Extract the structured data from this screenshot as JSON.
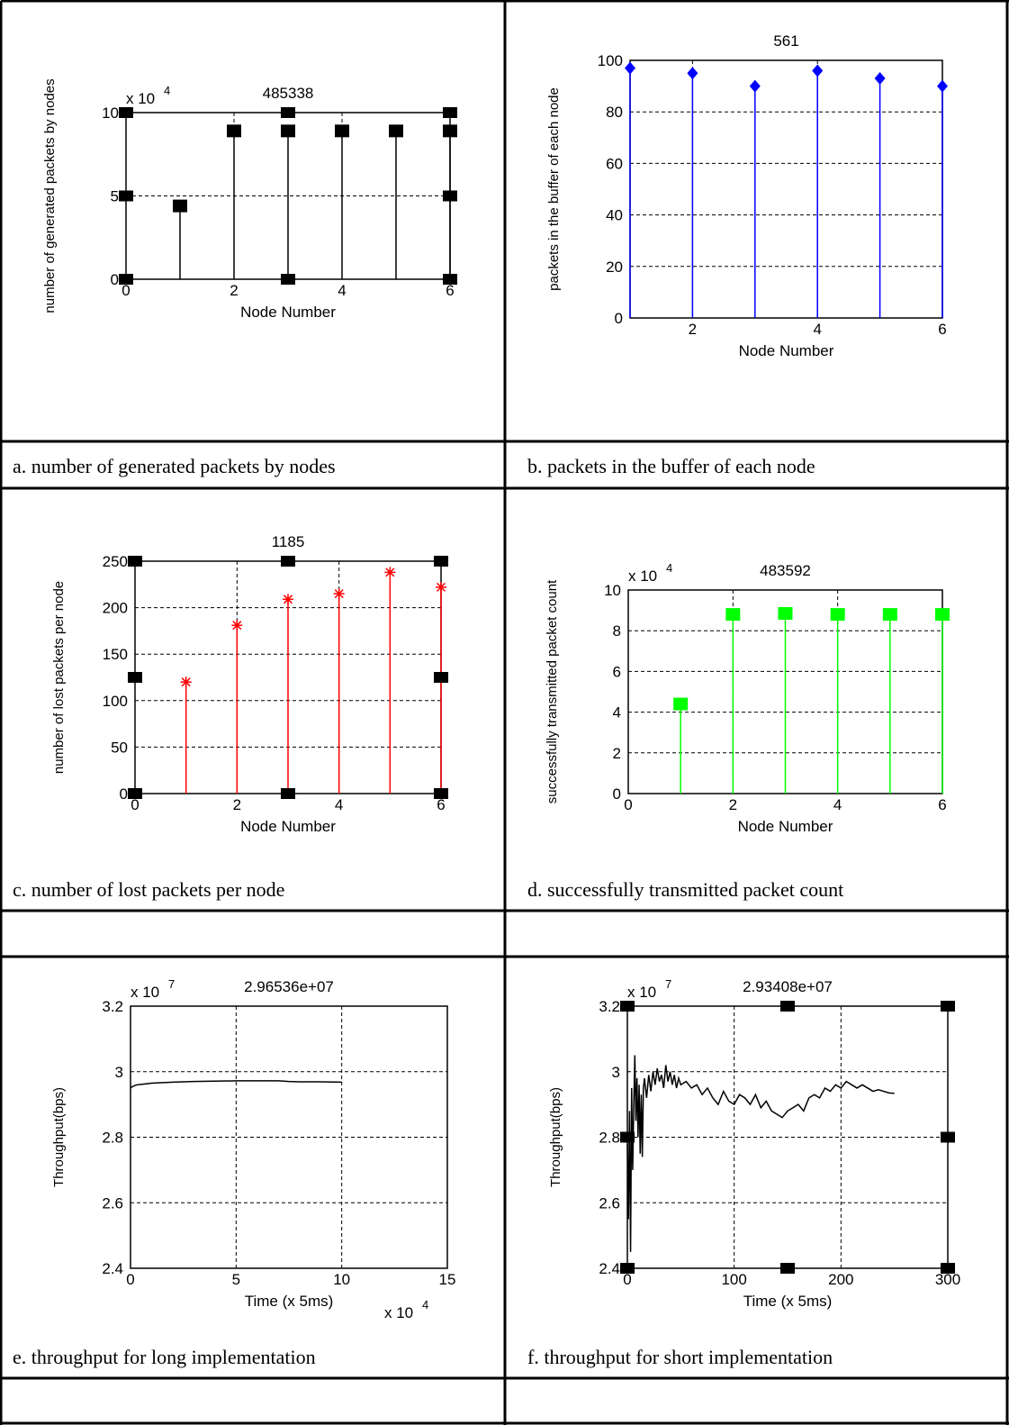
{
  "chart_data": [
    {
      "type": "stem",
      "title": "485338",
      "xlabel": "Node Number",
      "ylabel": "number of generated packets by nodes",
      "y_exponent_label": "x 10",
      "y_exponent": "4",
      "xlim": [
        0,
        6
      ],
      "ylim": [
        0,
        10
      ],
      "xticks": [
        "0",
        "2",
        "4",
        "6"
      ],
      "yticks": [
        "0",
        "5",
        "10"
      ],
      "grid": "dashed",
      "color": "#000000",
      "marker": "square",
      "x": [
        1,
        2,
        3,
        4,
        5,
        6
      ],
      "values": [
        4.4,
        8.9,
        8.9,
        8.9,
        8.9,
        8.9
      ],
      "caption": "a. number of generated packets by nodes"
    },
    {
      "type": "stem",
      "title": "561",
      "xlabel": "Node Number",
      "ylabel": "packets in the buffer of each node",
      "xlim": [
        1,
        6
      ],
      "ylim": [
        0,
        100
      ],
      "xticks": [
        "2",
        "4",
        "6"
      ],
      "yticks": [
        "0",
        "20",
        "40",
        "60",
        "80",
        "100"
      ],
      "grid": "dashed",
      "color": "#0000ff",
      "marker": "diamond",
      "x": [
        1,
        2,
        3,
        4,
        5,
        6
      ],
      "values": [
        97,
        95,
        90,
        96,
        93,
        90
      ],
      "caption": "b. packets in the buffer of each node"
    },
    {
      "type": "stem",
      "title": "1185",
      "xlabel": "Node Number",
      "ylabel": "number of lost packets per node",
      "xlim": [
        0,
        6
      ],
      "ylim": [
        0,
        250
      ],
      "xticks": [
        "0",
        "2",
        "4",
        "6"
      ],
      "yticks": [
        "0",
        "50",
        "100",
        "150",
        "200",
        "250"
      ],
      "grid": "dashed",
      "color": "#ff0000",
      "marker": "asterisk",
      "x": [
        1,
        2,
        3,
        4,
        5,
        6
      ],
      "values": [
        120,
        181,
        209,
        215,
        238,
        222
      ],
      "caption": "c. number of lost packets per node"
    },
    {
      "type": "stem",
      "title": "483592",
      "xlabel": "Node Number",
      "ylabel": "successfully transmitted packet count",
      "y_exponent_label": "x 10",
      "y_exponent": "4",
      "xlim": [
        0,
        6
      ],
      "ylim": [
        0,
        10
      ],
      "xticks": [
        "0",
        "2",
        "4",
        "6"
      ],
      "yticks": [
        "0",
        "2",
        "4",
        "6",
        "8",
        "10"
      ],
      "grid": "dashed",
      "color": "#00ff00",
      "marker": "square",
      "x": [
        1,
        2,
        3,
        4,
        5,
        6
      ],
      "values": [
        4.4,
        8.8,
        8.85,
        8.8,
        8.8,
        8.8
      ],
      "caption": "d. successfully transmitted packet count"
    },
    {
      "type": "line",
      "title": "2.96536e+07",
      "xlabel": "Time (x 5ms)",
      "ylabel": "Throughput(bps)",
      "y_exponent_label": "x 10",
      "y_exponent": "7",
      "x_exponent_label": "x 10",
      "x_exponent": "4",
      "xlim": [
        0,
        15
      ],
      "ylim": [
        2.4,
        3.2
      ],
      "xticks": [
        "0",
        "5",
        "10",
        "15"
      ],
      "yticks": [
        "2.4",
        "2.6",
        "2.8",
        "3",
        "3.2"
      ],
      "grid": "dashed",
      "color": "#000000",
      "x": [
        0,
        0.1,
        0.3,
        0.6,
        1,
        2,
        3,
        4,
        5,
        6,
        7,
        7.5,
        8,
        9,
        10
      ],
      "values": [
        2.95,
        2.955,
        2.96,
        2.962,
        2.965,
        2.968,
        2.97,
        2.971,
        2.972,
        2.972,
        2.972,
        2.97,
        2.969,
        2.969,
        2.968
      ],
      "caption": "e. throughput for long implementation"
    },
    {
      "type": "line",
      "title": "2.93408e+07",
      "xlabel": "Time (x 5ms)",
      "ylabel": "Throughput(bps)",
      "y_exponent_label": "x 10",
      "y_exponent": "7",
      "xlim": [
        0,
        300
      ],
      "ylim": [
        2.4,
        3.2
      ],
      "xticks": [
        "0",
        "100",
        "200",
        "300"
      ],
      "yticks": [
        "2.4",
        "2.6",
        "2.8",
        "3",
        "3.2"
      ],
      "grid": "dashed",
      "color": "#000000",
      "x": [
        0,
        1,
        2,
        3,
        4,
        5,
        6,
        7,
        8,
        9,
        10,
        11,
        12,
        13,
        14,
        15,
        16,
        18,
        20,
        22,
        24,
        26,
        28,
        30,
        32,
        34,
        36,
        38,
        40,
        42,
        44,
        46,
        48,
        50,
        55,
        60,
        65,
        70,
        75,
        80,
        85,
        90,
        95,
        100,
        105,
        110,
        115,
        120,
        125,
        130,
        135,
        140,
        145,
        150,
        155,
        160,
        165,
        170,
        175,
        180,
        185,
        190,
        195,
        200,
        205,
        210,
        215,
        220,
        225,
        230,
        235,
        240,
        245,
        250
      ],
      "values": [
        2.78,
        2.55,
        2.88,
        2.45,
        2.95,
        2.7,
        2.9,
        3.05,
        2.85,
        2.98,
        2.8,
        2.96,
        2.75,
        2.93,
        2.74,
        2.95,
        2.98,
        2.92,
        2.99,
        2.94,
        3.0,
        2.96,
        3.01,
        2.97,
        2.99,
        2.95,
        3.02,
        2.97,
        3.0,
        2.96,
        2.99,
        2.95,
        2.98,
        2.96,
        2.97,
        2.95,
        2.96,
        2.93,
        2.95,
        2.92,
        2.9,
        2.94,
        2.91,
        2.9,
        2.93,
        2.92,
        2.9,
        2.93,
        2.89,
        2.91,
        2.88,
        2.87,
        2.86,
        2.88,
        2.89,
        2.9,
        2.88,
        2.92,
        2.93,
        2.92,
        2.95,
        2.94,
        2.96,
        2.95,
        2.97,
        2.96,
        2.95,
        2.96,
        2.95,
        2.94,
        2.945,
        2.94,
        2.935,
        2.934
      ],
      "caption": "f. throughput for short implementation"
    }
  ]
}
